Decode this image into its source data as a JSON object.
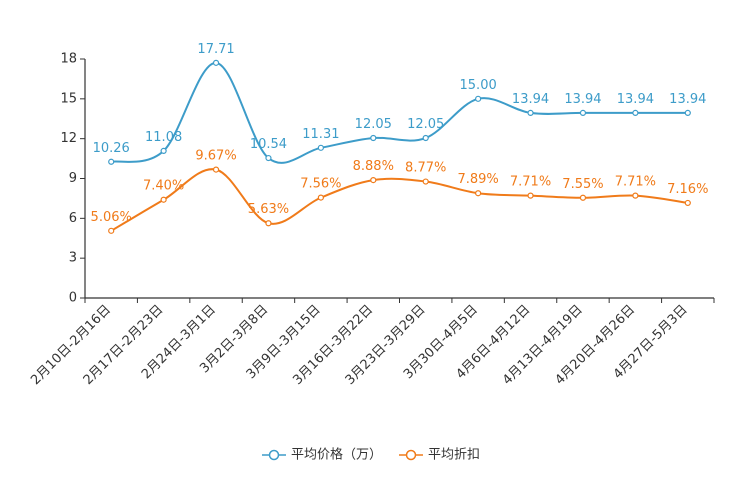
{
  "chart_data": {
    "type": "line",
    "title": "",
    "xlabel": "",
    "ylabel": "",
    "ylim": [
      0,
      18
    ],
    "yticks": [
      "0",
      "3",
      "6",
      "9",
      "12",
      "15",
      "18"
    ],
    "categories": [
      "2月10日-2月16日",
      "2月17日-2月23日",
      "2月24日-3月1日",
      "3月2日-3月8日",
      "3月9日-3月15日",
      "3月16日-3月22日",
      "3月23日-3月29日",
      "3月30日-4月5日",
      "4月6日-4月12日",
      "4月13日-4月19日",
      "4月20日-4月26日",
      "4月27日-5月3日"
    ],
    "series": [
      {
        "name": "平均价格（万）",
        "color": "#3d9cc9",
        "values": [
          10.26,
          11.08,
          17.71,
          10.54,
          11.31,
          12.05,
          12.05,
          15.0,
          13.94,
          13.94,
          13.94,
          13.94
        ],
        "labels": [
          "10.26",
          "11.08",
          "17.71",
          "10.54",
          "11.31",
          "12.05",
          "12.05",
          "15.00",
          "13.94",
          "13.94",
          "13.94",
          "13.94"
        ]
      },
      {
        "name": "平均折扣",
        "color": "#f07b1a",
        "values": [
          5.06,
          7.4,
          9.67,
          5.63,
          7.56,
          8.88,
          8.77,
          7.89,
          7.71,
          7.55,
          7.71,
          7.16
        ],
        "labels": [
          "5.06%",
          "7.40%",
          "9.67%",
          "5.63%",
          "7.56%",
          "8.88%",
          "8.77%",
          "7.89%",
          "7.71%",
          "7.55%",
          "7.71%",
          "7.16%"
        ]
      }
    ],
    "legend": {
      "position": "bottom-center"
    },
    "grid": false
  }
}
